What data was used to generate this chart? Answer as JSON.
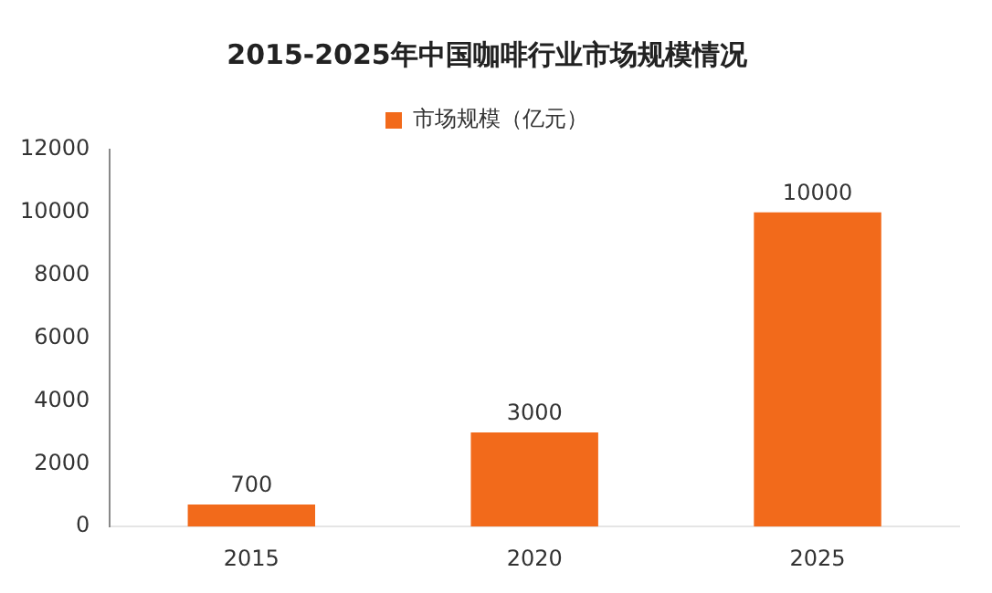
{
  "chart_data": {
    "type": "bar",
    "title": "2015-2025年中国咖啡行业市场规模情况",
    "categories": [
      "2015",
      "2020",
      "2025"
    ],
    "series": [
      {
        "name": "市场规模（亿元）",
        "color": "#f26a1b",
        "values": [
          700,
          3000,
          10000
        ]
      }
    ],
    "ylim": [
      0,
      12000
    ],
    "yticks": [
      0,
      2000,
      4000,
      6000,
      8000,
      10000,
      12000
    ],
    "grid": false,
    "legend": "top",
    "data_labels": true
  }
}
